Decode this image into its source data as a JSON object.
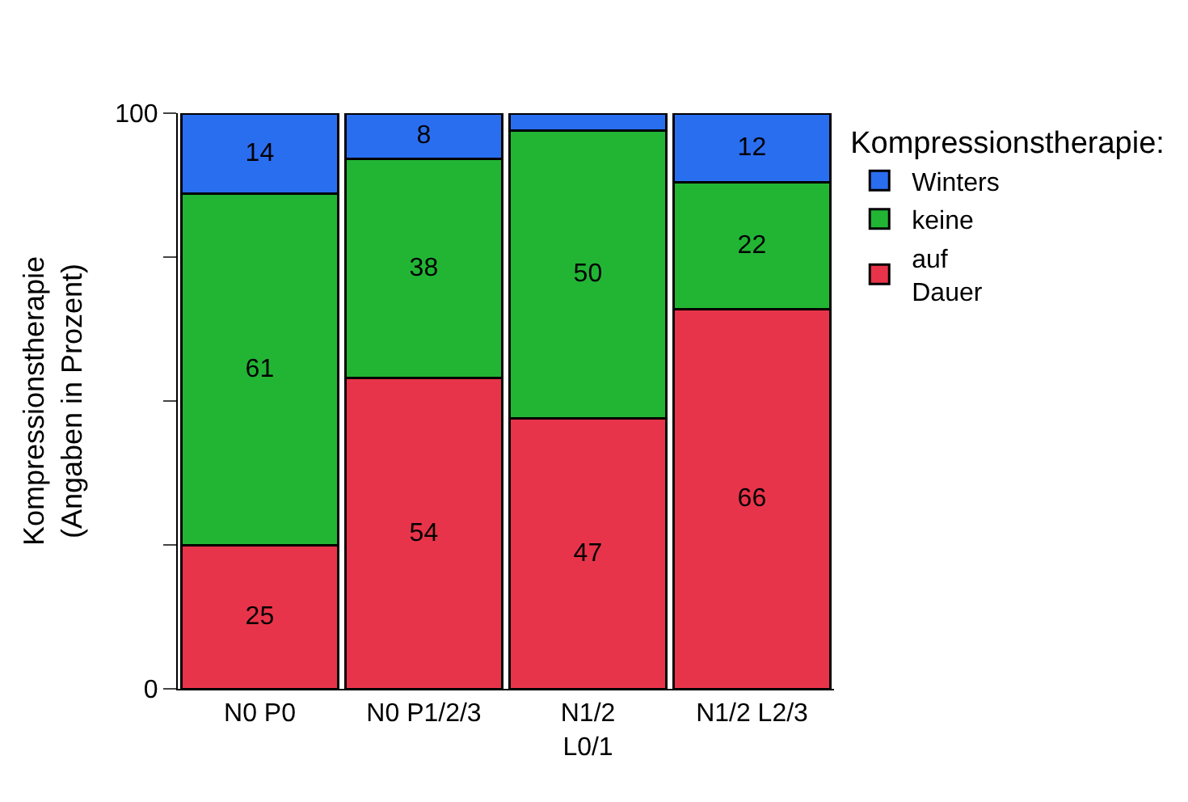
{
  "chart_data": {
    "type": "bar",
    "stacked": true,
    "ylabel": "Kompressionstherapie\n(Angaben in Prozent)",
    "legend_title": "Kompressionstherapie:",
    "categories": [
      "N0 P0",
      "N0 P1/2/3",
      "N1/2\nL0/1",
      "N1/2 L2/3"
    ],
    "series": [
      {
        "name": "auf\nDauer",
        "color": "#e8344a",
        "values": [
          25,
          54,
          47,
          66
        ],
        "value_labels": [
          "25",
          "54",
          "47",
          "66"
        ]
      },
      {
        "name": "keine",
        "color": "#22b534",
        "values": [
          61,
          38,
          50,
          22
        ],
        "value_labels": [
          "61",
          "38",
          "50",
          "22"
        ]
      },
      {
        "name": "Winters",
        "color": "#2a6ef0",
        "values": [
          14,
          8,
          3,
          12
        ],
        "value_labels": [
          "14",
          "8",
          null,
          "12"
        ]
      }
    ],
    "ylim": [
      0,
      100
    ],
    "yticks": [
      0,
      {
        "value": 25,
        "label": null
      },
      {
        "value": 50,
        "label": null
      },
      {
        "value": 75,
        "label": null
      },
      100
    ],
    "legend": "right"
  }
}
